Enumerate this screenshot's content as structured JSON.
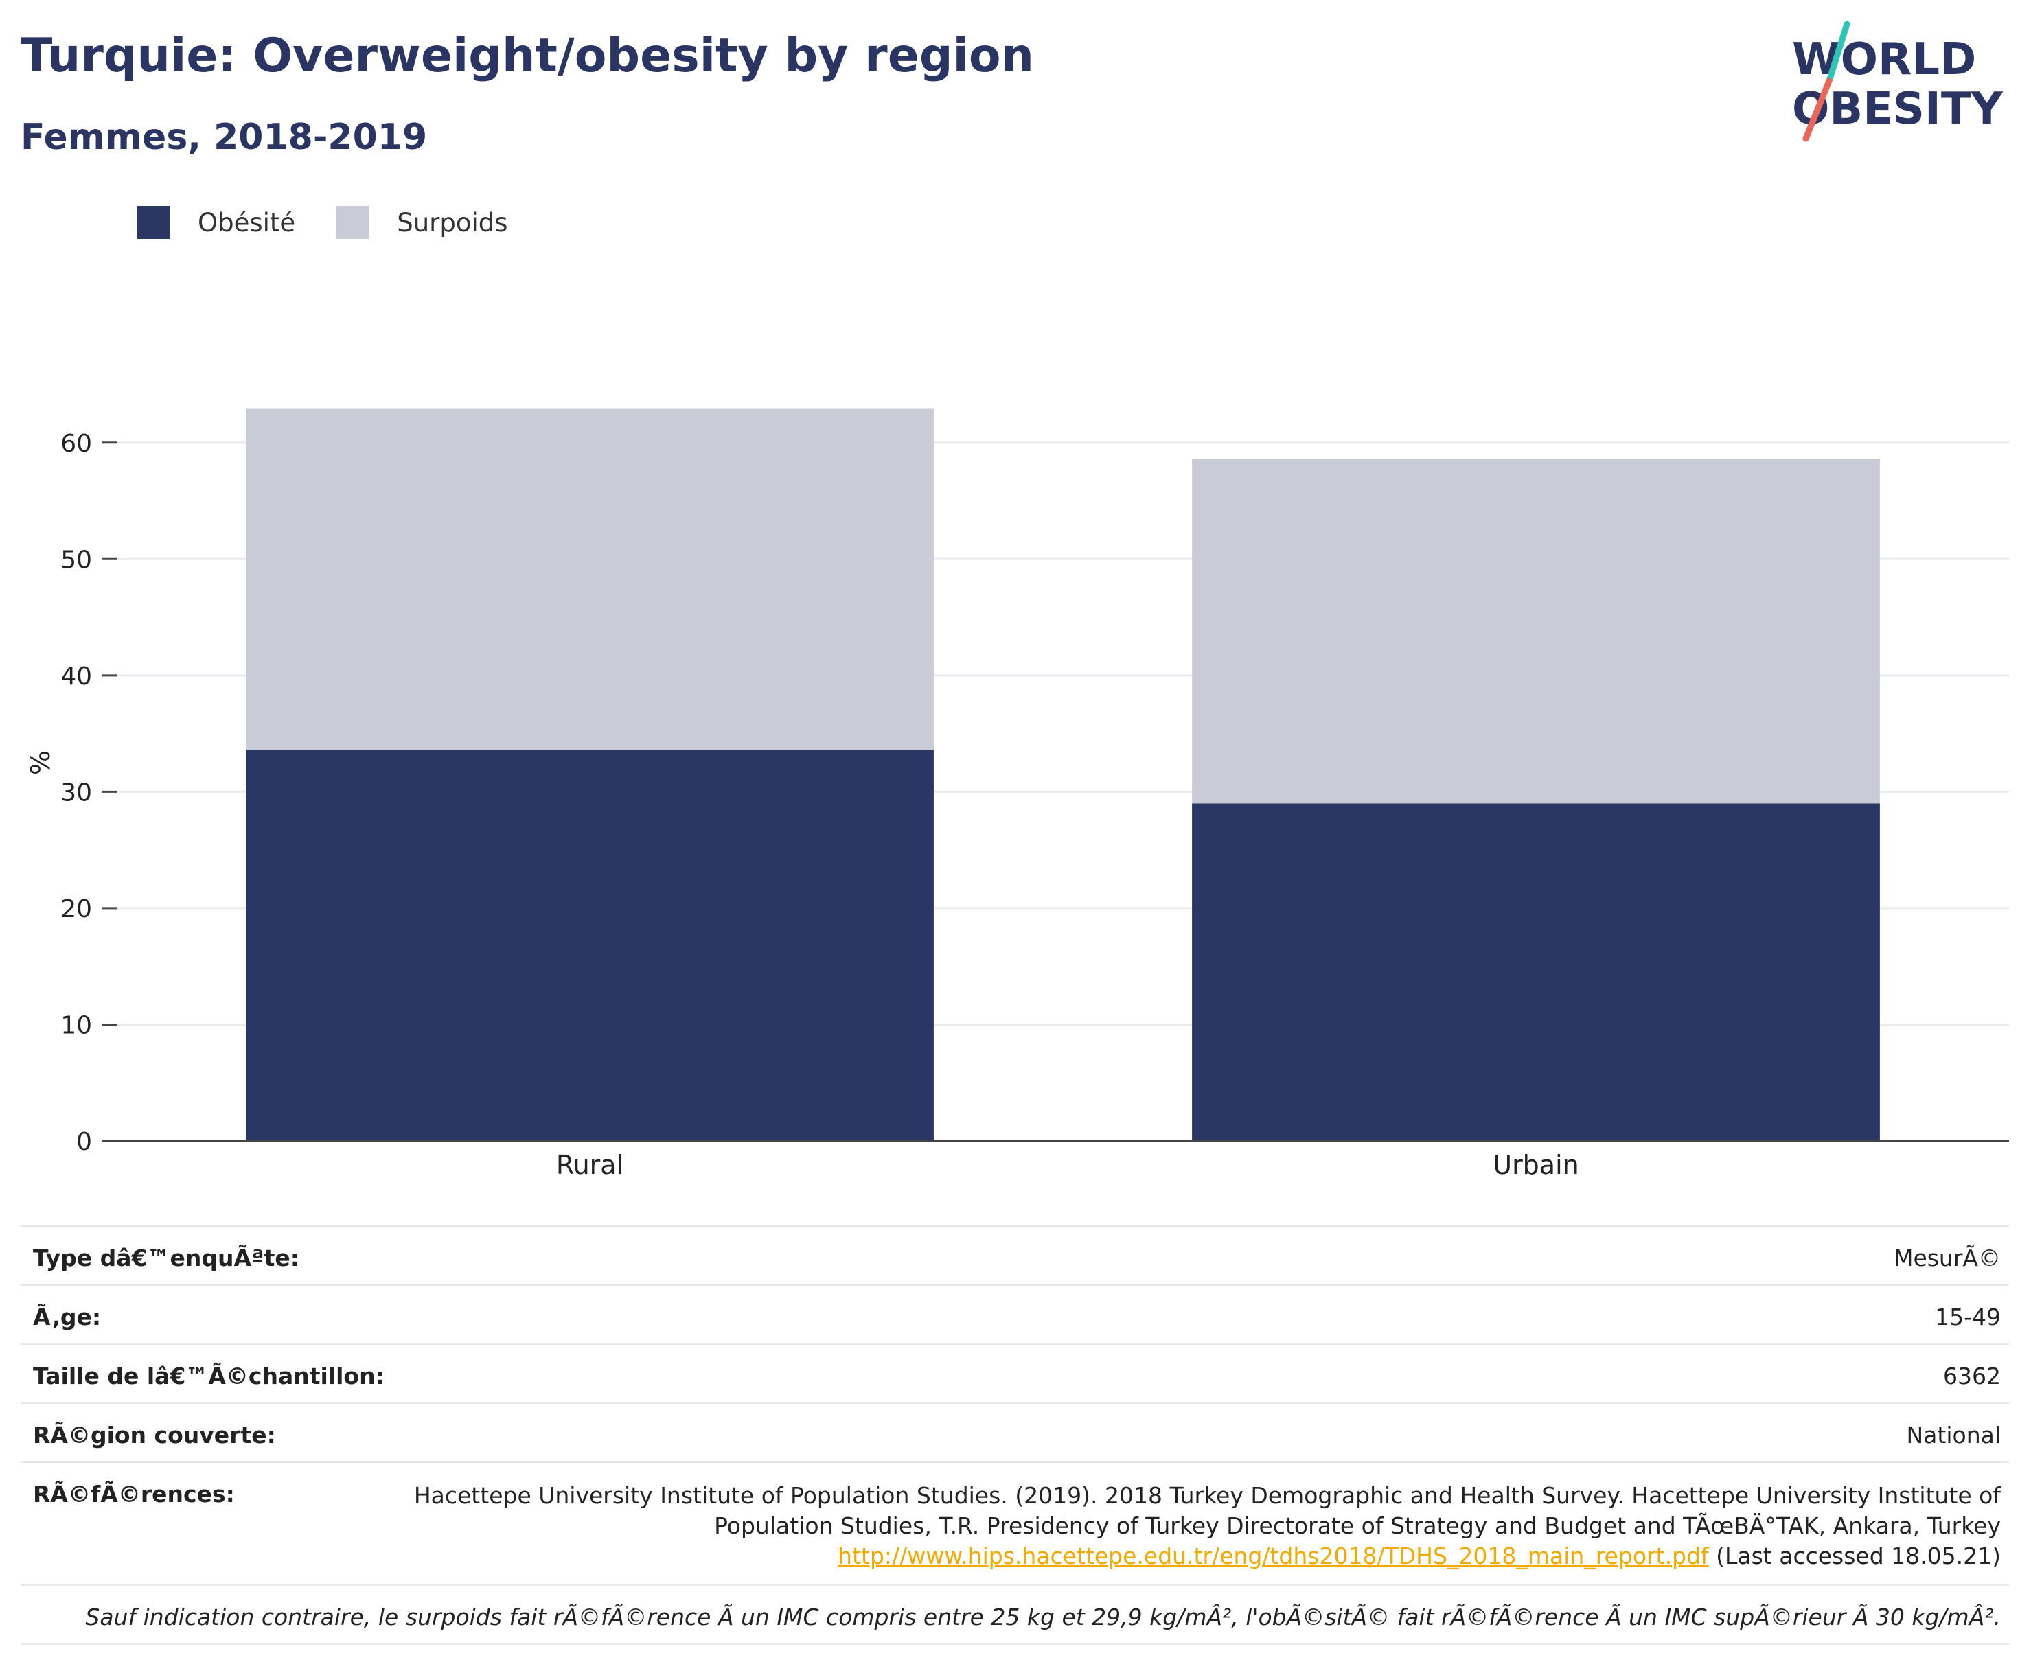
{
  "header": {
    "title": "Turquie: Overweight/obesity by region",
    "subtitle": "Femmes, 2018-2019"
  },
  "logo": {
    "line1": "WORLD",
    "line2": "OBESITY"
  },
  "colors": {
    "obesity": "#2a3663",
    "overweight": "#c9cbd6",
    "accent_teal": "#2ec4b6",
    "accent_red": "#e8665a"
  },
  "legend": {
    "items": [
      "Obésité",
      "Surpoids"
    ]
  },
  "chart_data": {
    "type": "bar",
    "stacked": true,
    "categories": [
      "Rural",
      "Urbain"
    ],
    "series": [
      {
        "name": "Obésité",
        "values": [
          33.6,
          29.0
        ]
      },
      {
        "name": "Surpoids",
        "values": [
          29.3,
          29.6
        ]
      }
    ],
    "ylabel": "%",
    "ylim": [
      0,
      65
    ],
    "yticks": [
      0,
      10,
      20,
      30,
      40,
      50,
      60
    ],
    "grid": true,
    "legend_position": "top-left"
  },
  "info": {
    "rows": [
      {
        "key": "Type dâ€™enquÃªte:",
        "value": "MesurÃ©"
      },
      {
        "key": "Ã‚ge:",
        "value": "15-49"
      },
      {
        "key": "Taille de lâ€™Ã©chantillon:",
        "value": "6362"
      },
      {
        "key": "RÃ©gion couverte:",
        "value": "National"
      }
    ],
    "references": {
      "key": "RÃ©fÃ©rences:",
      "text": "Hacettepe University Institute of Population Studies. (2019). 2018 Turkey Demographic and Health Survey. Hacettepe University Institute of Population Studies, T.R. Presidency of Turkey Directorate of Strategy and Budget and TÃœBÄ°TAK, Ankara, Turkey",
      "link": "http://www.hips.hacettepe.edu.tr/eng/tdhs2018/TDHS_2018_main_report.pdf",
      "suffix": " (Last accessed 18.05.21)"
    },
    "note": "Sauf indication contraire, le surpoids fait rÃ©fÃ©rence Ã  un IMC compris entre 25 kg et 29,9 kg/mÂ², l'obÃ©sitÃ© fait rÃ©fÃ©rence Ã  un IMC supÃ©rieur Ã  30 kg/mÂ²."
  }
}
